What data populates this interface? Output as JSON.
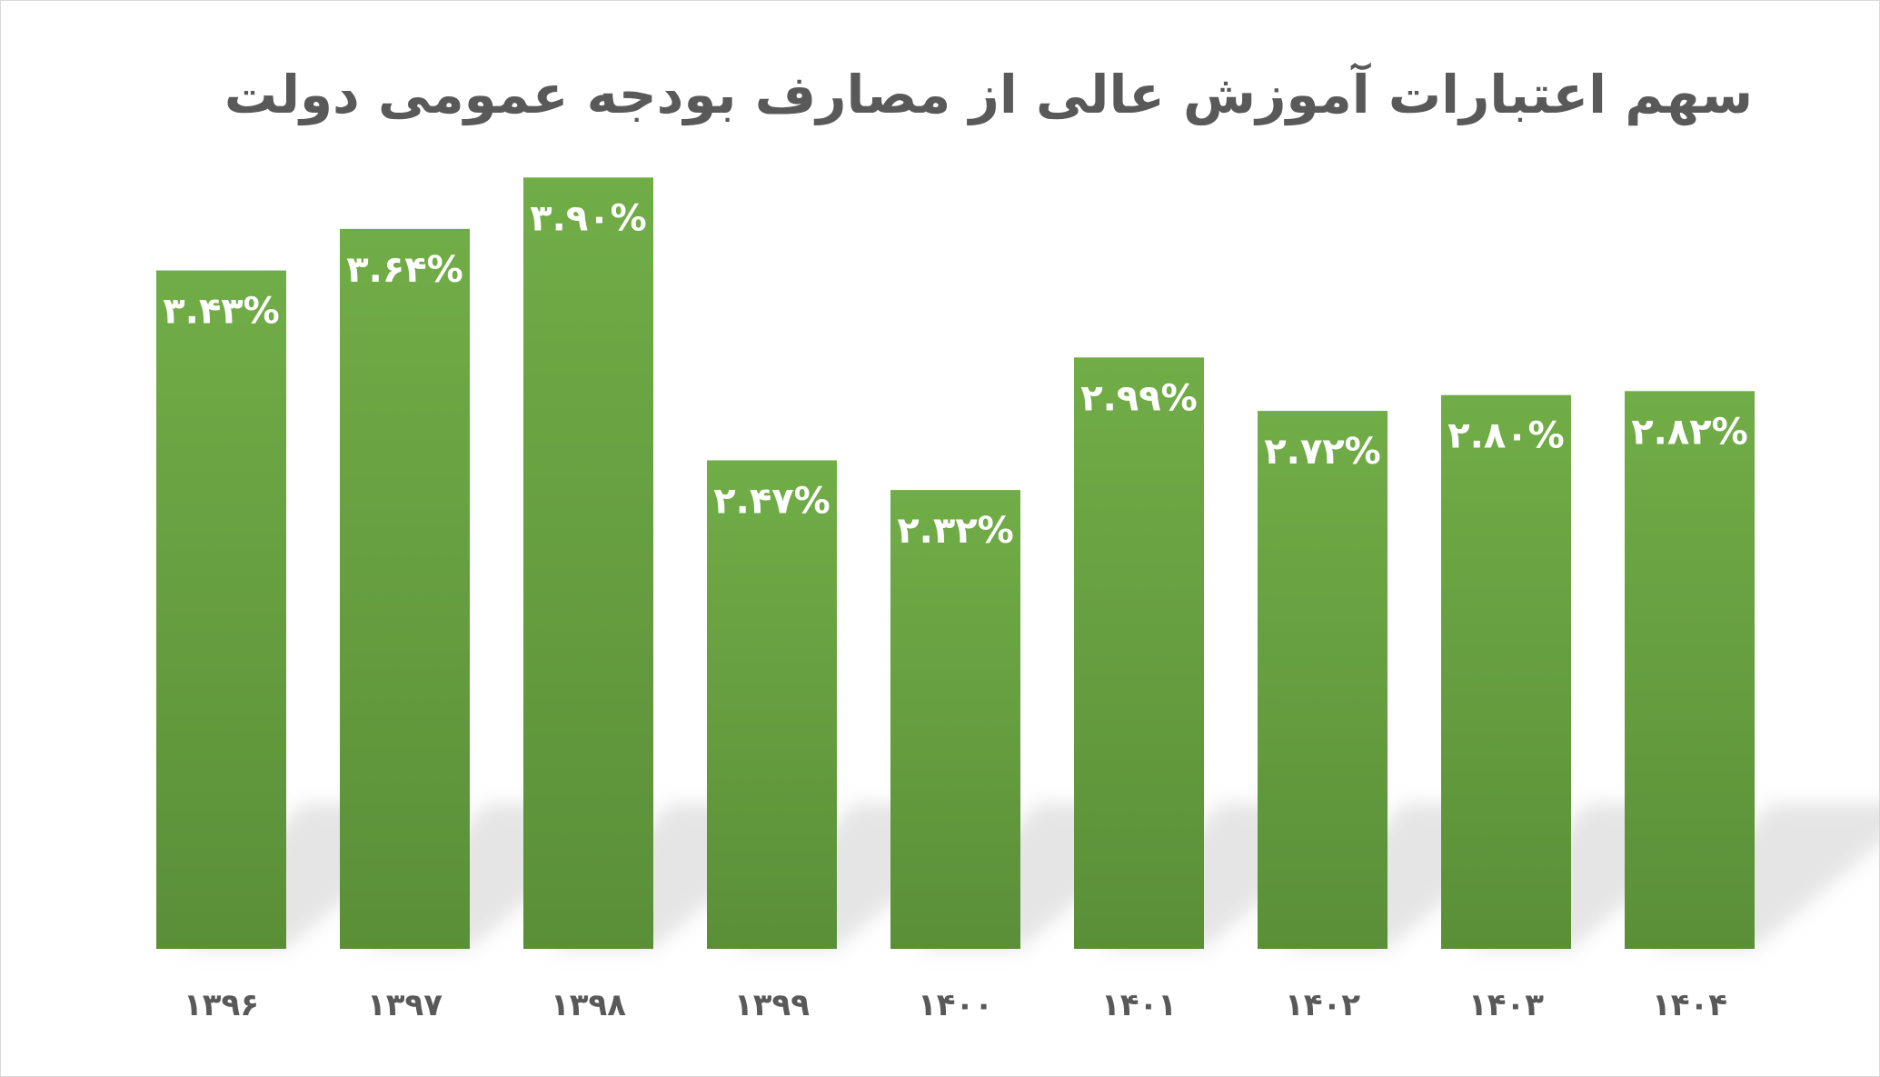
{
  "chart_data": {
    "type": "bar",
    "title": "سهم اعتبارات آموزش عالی از مصارف بودجه عمومی دولت",
    "xlabel": "",
    "ylabel": "",
    "categories": [
      "۱۳۹۶",
      "۱۳۹۷",
      "۱۳۹۸",
      "۱۳۹۹",
      "۱۴۰۰",
      "۱۴۰۱",
      "۱۴۰۲",
      "۱۴۰۳",
      "۱۴۰۴"
    ],
    "values": [
      3.43,
      3.64,
      3.9,
      2.47,
      2.32,
      2.99,
      2.72,
      2.8,
      2.82
    ],
    "data_labels": [
      "۳.۴۳%",
      "۳.۶۴%",
      "۳.۹۰%",
      "۲.۴۷%",
      "۲.۳۲%",
      "۲.۹۹%",
      "۲.۷۲%",
      "۲.۸۰%",
      "۲.۸۲%"
    ],
    "ylim": [
      0,
      4.2
    ],
    "grid": false,
    "legend": "none",
    "colors": {
      "bar_top": "#71ad47",
      "bar_bottom": "#5a8f38",
      "label": "#ffffff",
      "tick": "#595959",
      "title": "#595959"
    }
  }
}
